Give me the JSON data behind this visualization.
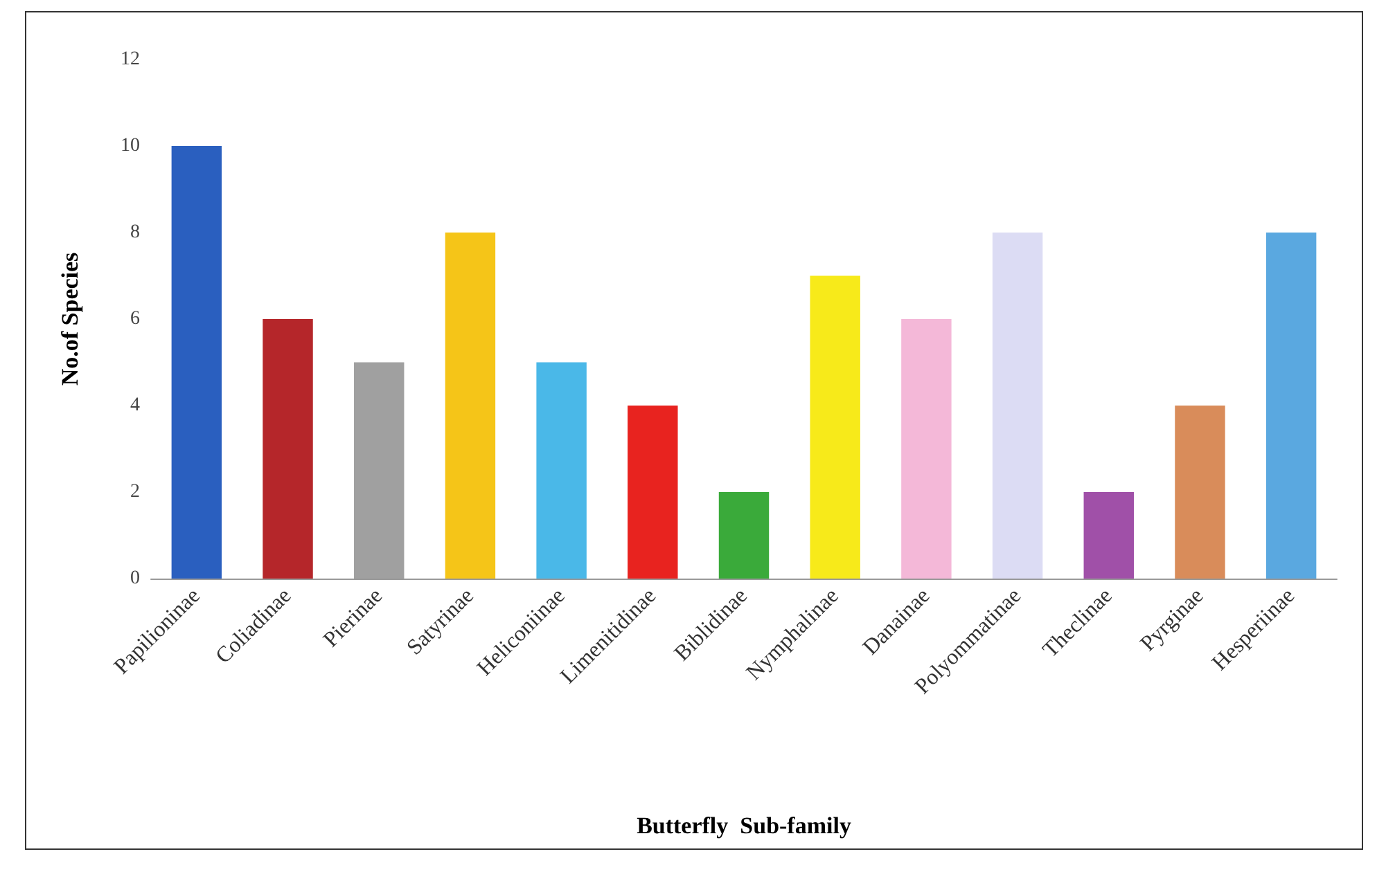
{
  "chart_data": {
    "type": "bar",
    "xlabel": "Butterfly  Sub-family",
    "ylabel": "No.of Species",
    "categories": [
      "Papilioninae",
      "Coliadinae",
      "Pierinae",
      "Satyrinae",
      "Heliconiinae",
      "Limenitidinae",
      "Biblidinae",
      "Nymphalinae",
      "Danainae",
      "Polyommatinae",
      "Theclinae",
      "Pyrginae",
      "Hesperiinae"
    ],
    "values": [
      10,
      6,
      5,
      8,
      5,
      4,
      2,
      7,
      6,
      8,
      2,
      4,
      8
    ],
    "colors": [
      "#2a5fbf",
      "#b5262a",
      "#a0a0a0",
      "#f5c518",
      "#4ab8e8",
      "#e8231f",
      "#3aaa3a",
      "#f7ea1a",
      "#f4b8d8",
      "#dcdcf4",
      "#a050a8",
      "#d98c5a",
      "#5aa8e0"
    ],
    "ylim": [
      0,
      12
    ],
    "yticks": [
      0,
      2,
      4,
      6,
      8,
      10,
      12
    ],
    "grid": false
  }
}
